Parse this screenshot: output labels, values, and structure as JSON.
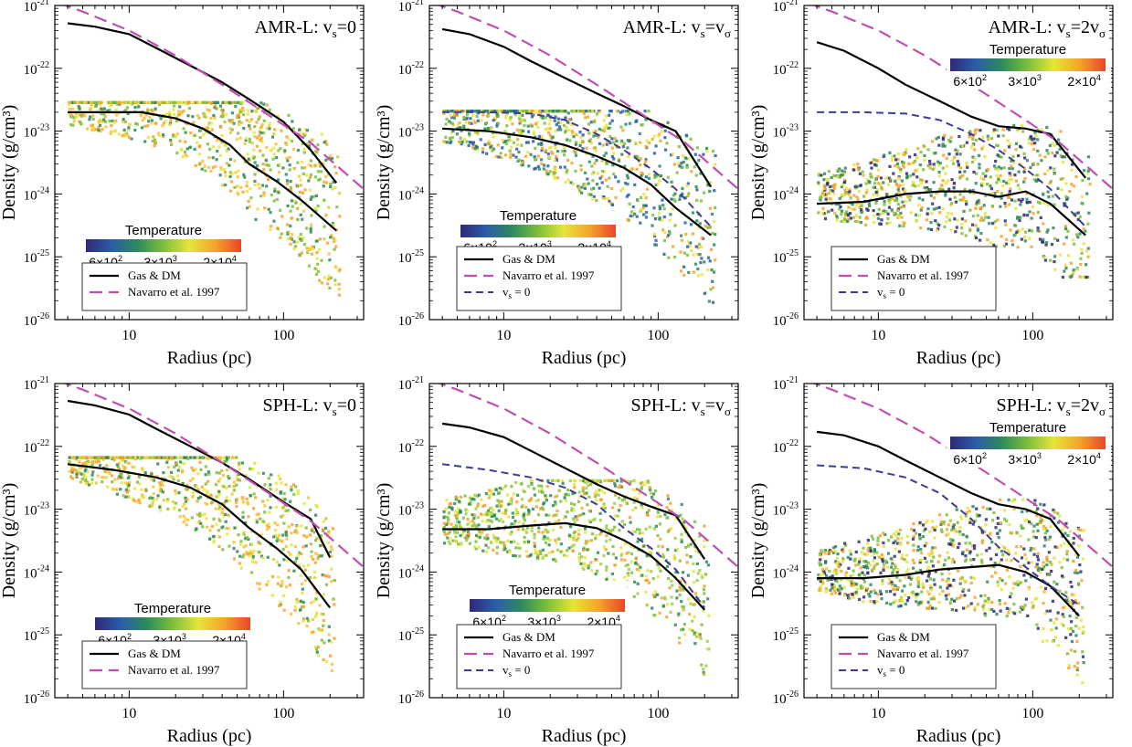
{
  "figure": {
    "colors": {
      "gas_dm": "#000000",
      "navarro": "#c04fb0",
      "vs0": "#3c3c96",
      "temperature_colormap": [
        "#2e2a78",
        "#2b5da8",
        "#2d8a5c",
        "#7cbf3a",
        "#e8e43c",
        "#f4a32a",
        "#e8452a"
      ],
      "axes": "#000000",
      "background": "#ffffff"
    },
    "shared": {
      "xlabel": "Radius (pc)",
      "ylabel": "Density (g/cm³)",
      "xscale": "log",
      "yscale": "log",
      "xlim": [
        3.3,
        330
      ],
      "ylim": [
        1e-26,
        1e-21
      ],
      "x_ticks": [
        10,
        100
      ],
      "x_tick_labels": [
        "10",
        "100"
      ],
      "y_ticks": [
        1e-26,
        1e-25,
        1e-24,
        1e-23,
        1e-22,
        1e-21
      ],
      "y_tick_labels": [
        "10",
        "10",
        "10",
        "10",
        "10",
        "10"
      ],
      "y_tick_exponents": [
        "-26",
        "-25",
        "-24",
        "-23",
        "-22",
        "-21"
      ],
      "colorbar": {
        "label": "Temperature",
        "ticks": [
          "6×10",
          "3×10",
          "2×10"
        ],
        "tick_exponents": [
          "2",
          "3",
          "4"
        ]
      },
      "legend_labels": {
        "gas_dm": "Gas & DM",
        "navarro": "Navarro et al. 1997",
        "vs0": "v  = 0"
      }
    }
  },
  "chart_data": [
    {
      "type": "line",
      "panel": "top-left",
      "title": "AMR-L: v",
      "title_sub": "s",
      "title_rest": "=0",
      "legend_entries": [
        "gas_dm",
        "navarro"
      ],
      "legend_placement": "bottom-left",
      "colorbar_placement": "bottom-left",
      "series": [
        {
          "name": "Gas & DM",
          "style": "gas_dm",
          "x": [
            4,
            6,
            10,
            15,
            25,
            40,
            60,
            100,
            150,
            220
          ],
          "y": [
            5.2e-22,
            4.6e-22,
            3.5e-22,
            2.1e-22,
            1.1e-22,
            6e-23,
            3.2e-23,
            1.4e-23,
            5e-24,
            1.5e-24
          ]
        },
        {
          "name": "Gas & DM (gas)",
          "style": "gas_dm",
          "x": [
            4,
            8,
            12,
            20,
            30,
            45,
            60,
            90,
            130,
            220
          ],
          "y": [
            2e-23,
            2e-23,
            2e-23,
            1.6e-23,
            1.1e-23,
            6e-24,
            3e-24,
            1.6e-24,
            8e-25,
            2.6e-25
          ]
        },
        {
          "name": "Navarro et al. 1997",
          "style": "navarro",
          "x": [
            3.5,
            5,
            10,
            20,
            40,
            80,
            150,
            330
          ],
          "y": [
            1.1e-21,
            8e-22,
            4e-22,
            1.6e-22,
            5.5e-23,
            1.8e-23,
            6.5e-24,
            1.2e-24
          ]
        }
      ],
      "scatter_region": {
        "xmin": 4,
        "xmax": 230,
        "ymin": 2e-26,
        "ymax": 3e-23,
        "palette": [
          "#f4a32a",
          "#e8e43c",
          "#f7c23a",
          "#7cbf3a",
          "#2d8a5c"
        ]
      }
    },
    {
      "type": "line",
      "panel": "top-middle",
      "title": "AMR-L: v",
      "title_sub": "s",
      "title_rest": "=v",
      "title_rest_sub": "σ",
      "legend_entries": [
        "gas_dm",
        "navarro",
        "vs0"
      ],
      "legend_placement": "bottom-left",
      "colorbar_placement": "bottom-left",
      "series": [
        {
          "name": "Gas & DM",
          "style": "gas_dm",
          "x": [
            4,
            6,
            10,
            15,
            25,
            40,
            60,
            90,
            130,
            220
          ],
          "y": [
            4.2e-22,
            3.5e-22,
            2.2e-22,
            1.3e-22,
            7e-23,
            4e-23,
            2.5e-23,
            1.5e-23,
            1e-23,
            1.3e-24
          ]
        },
        {
          "name": "Gas & DM (gas)",
          "style": "gas_dm",
          "x": [
            4,
            8,
            15,
            25,
            40,
            60,
            90,
            130,
            220
          ],
          "y": [
            1.1e-23,
            1e-23,
            8e-24,
            6e-24,
            4e-24,
            2.6e-24,
            1.4e-24,
            6e-25,
            2.2e-25
          ]
        },
        {
          "name": "Navarro et al. 1997",
          "style": "navarro",
          "x": [
            3.5,
            5,
            10,
            20,
            40,
            80,
            150,
            330
          ],
          "y": [
            1.1e-21,
            8e-22,
            4e-22,
            1.6e-22,
            5.5e-23,
            1.8e-23,
            6.5e-24,
            1.2e-24
          ]
        },
        {
          "name": "v  = 0",
          "style": "vs0",
          "x": [
            4,
            8,
            15,
            25,
            40,
            60,
            90,
            130,
            220
          ],
          "y": [
            2e-23,
            2e-23,
            1.9e-23,
            1.5e-23,
            9e-24,
            5e-24,
            2.5e-24,
            1.2e-24,
            3e-25
          ]
        }
      ],
      "scatter_region": {
        "xmin": 4,
        "xmax": 230,
        "ymin": 1e-26,
        "ymax": 2.2e-23,
        "palette": [
          "#f4a32a",
          "#e8e43c",
          "#7cbf3a",
          "#2d8a5c",
          "#2b5da8"
        ]
      }
    },
    {
      "type": "line",
      "panel": "top-right",
      "title": "AMR-L: v",
      "title_sub": "s",
      "title_rest": "=2v",
      "title_rest_sub": "σ",
      "legend_entries": [
        "gas_dm",
        "navarro",
        "vs0"
      ],
      "legend_placement": "bottom-left",
      "colorbar_placement": "top-right",
      "series": [
        {
          "name": "Gas & DM",
          "style": "gas_dm",
          "x": [
            4,
            6,
            10,
            15,
            25,
            40,
            60,
            90,
            130,
            220
          ],
          "y": [
            2.6e-22,
            1.9e-22,
            1e-22,
            5.5e-23,
            3e-23,
            1.7e-23,
            1.2e-23,
            1.1e-23,
            9e-24,
            1.8e-24
          ]
        },
        {
          "name": "Gas & DM (gas)",
          "style": "gas_dm",
          "x": [
            4,
            8,
            15,
            25,
            40,
            60,
            90,
            130,
            220
          ],
          "y": [
            7e-25,
            7.5e-25,
            1e-24,
            1.1e-24,
            1.1e-24,
            9e-25,
            1.1e-24,
            7e-25,
            2.2e-25
          ]
        },
        {
          "name": "Navarro et al. 1997",
          "style": "navarro",
          "x": [
            3.5,
            5,
            10,
            20,
            40,
            80,
            150,
            330
          ],
          "y": [
            1.1e-21,
            8e-22,
            4e-22,
            1.6e-22,
            5.5e-23,
            1.8e-23,
            6.5e-24,
            1.2e-24
          ]
        },
        {
          "name": "v  = 0",
          "style": "vs0",
          "x": [
            4,
            8,
            15,
            25,
            40,
            60,
            90,
            130,
            220
          ],
          "y": [
            2e-23,
            2e-23,
            1.9e-23,
            1.5e-23,
            9e-24,
            5e-24,
            2.5e-24,
            1.2e-24,
            3e-25
          ]
        }
      ],
      "scatter_region": {
        "xmin": 4,
        "xmax": 230,
        "ymin": 5e-26,
        "ymax": 1.3e-23,
        "palette": [
          "#2d8a5c",
          "#7cbf3a",
          "#e8e43c",
          "#f4a32a",
          "#2e2a78"
        ]
      }
    },
    {
      "type": "line",
      "panel": "bottom-left",
      "title": "SPH-L: v",
      "title_sub": "s",
      "title_rest": "=0",
      "legend_entries": [
        "gas_dm",
        "navarro"
      ],
      "legend_placement": "bottom-left",
      "colorbar_placement": "bottom-left",
      "series": [
        {
          "name": "Gas & DM",
          "style": "gas_dm",
          "x": [
            4,
            6,
            10,
            15,
            25,
            40,
            60,
            100,
            150,
            200
          ],
          "y": [
            5.3e-22,
            4.5e-22,
            3.2e-22,
            1.9e-22,
            1e-22,
            5.5e-23,
            3e-23,
            1.3e-23,
            7e-24,
            1.7e-24
          ]
        },
        {
          "name": "Gas & DM (gas)",
          "style": "gas_dm",
          "x": [
            4,
            8,
            15,
            25,
            40,
            60,
            90,
            130,
            200
          ],
          "y": [
            5.2e-23,
            4.2e-23,
            3.2e-23,
            2.2e-23,
            1.2e-23,
            5e-24,
            2.4e-24,
            1.1e-24,
            2.7e-25
          ]
        },
        {
          "name": "Navarro et al. 1997",
          "style": "navarro",
          "x": [
            3.5,
            5,
            10,
            20,
            40,
            80,
            150,
            330
          ],
          "y": [
            1.1e-21,
            8e-22,
            4e-22,
            1.6e-22,
            5.5e-23,
            1.8e-23,
            6.5e-24,
            1.2e-24
          ]
        }
      ],
      "scatter_region": {
        "xmin": 4,
        "xmax": 210,
        "ymin": 2e-26,
        "ymax": 7e-23,
        "palette": [
          "#f4a32a",
          "#e8e43c",
          "#7cbf3a",
          "#2d8a5c",
          "#f7c23a"
        ]
      }
    },
    {
      "type": "line",
      "panel": "bottom-middle",
      "title": "SPH-L: v",
      "title_sub": "s",
      "title_rest": "=v",
      "title_rest_sub": "σ",
      "legend_entries": [
        "gas_dm",
        "navarro",
        "vs0"
      ],
      "legend_placement": "bottom-left",
      "colorbar_placement": "bottom-left",
      "series": [
        {
          "name": "Gas & DM",
          "style": "gas_dm",
          "x": [
            4,
            6,
            10,
            15,
            25,
            40,
            60,
            90,
            130,
            200
          ],
          "y": [
            2.3e-22,
            2e-22,
            1.4e-22,
            8.5e-23,
            4.5e-23,
            2.5e-23,
            1.6e-23,
            1.1e-23,
            8e-24,
            1.6e-24
          ]
        },
        {
          "name": "Gas & DM (gas)",
          "style": "gas_dm",
          "x": [
            4,
            8,
            15,
            25,
            40,
            60,
            90,
            130,
            200
          ],
          "y": [
            4.8e-24,
            4.8e-24,
            5.5e-24,
            6e-24,
            5e-24,
            3.2e-24,
            1.8e-24,
            8e-25,
            2.5e-25
          ]
        },
        {
          "name": "Navarro et al. 1997",
          "style": "navarro",
          "x": [
            3.5,
            5,
            10,
            20,
            40,
            80,
            150,
            330
          ],
          "y": [
            1.1e-21,
            8e-22,
            4e-22,
            1.6e-22,
            5.5e-23,
            1.8e-23,
            6.5e-24,
            1.2e-24
          ]
        },
        {
          "name": "v  = 0",
          "style": "vs0",
          "x": [
            4,
            8,
            15,
            25,
            40,
            60,
            90,
            130,
            200
          ],
          "y": [
            5.2e-23,
            4.2e-23,
            3.2e-23,
            2.2e-23,
            1.2e-23,
            5e-24,
            2.4e-24,
            1.1e-24,
            2.7e-25
          ]
        }
      ],
      "scatter_region": {
        "xmin": 4,
        "xmax": 210,
        "ymin": 2e-26,
        "ymax": 3e-23,
        "palette": [
          "#e8e43c",
          "#7cbf3a",
          "#2d8a5c",
          "#f4a32a",
          "#9fd04a"
        ]
      }
    },
    {
      "type": "line",
      "panel": "bottom-right",
      "title": "SPH-L: v",
      "title_sub": "s",
      "title_rest": "=2v",
      "title_rest_sub": "σ",
      "legend_entries": [
        "gas_dm",
        "navarro",
        "vs0"
      ],
      "legend_placement": "bottom-left",
      "colorbar_placement": "top-right",
      "series": [
        {
          "name": "Gas & DM",
          "style": "gas_dm",
          "x": [
            4,
            6,
            10,
            15,
            25,
            40,
            60,
            90,
            130,
            200
          ],
          "y": [
            1.7e-22,
            1.5e-22,
            1e-22,
            6e-23,
            3.2e-23,
            1.8e-23,
            1.2e-23,
            1e-23,
            7e-24,
            1.8e-24
          ]
        },
        {
          "name": "Gas & DM (gas)",
          "style": "gas_dm",
          "x": [
            4,
            8,
            15,
            25,
            40,
            60,
            90,
            130,
            200
          ],
          "y": [
            8e-25,
            8e-25,
            9e-25,
            1.1e-24,
            1.2e-24,
            1.3e-24,
            1e-24,
            6e-25,
            2e-25
          ]
        },
        {
          "name": "Navarro et al. 1997",
          "style": "navarro",
          "x": [
            3.5,
            5,
            10,
            20,
            40,
            80,
            150,
            330
          ],
          "y": [
            1.1e-21,
            8e-22,
            4e-22,
            1.6e-22,
            5.5e-23,
            1.8e-23,
            6.5e-24,
            1.2e-24
          ]
        },
        {
          "name": "v  = 0",
          "style": "vs0",
          "x": [
            4,
            8,
            15,
            25,
            40,
            60,
            90,
            130,
            200
          ],
          "y": [
            5e-23,
            4.5e-23,
            3.2e-23,
            1.8e-23,
            7e-24,
            2.5e-24,
            1.2e-24,
            6e-25,
            3e-25
          ]
        }
      ],
      "scatter_region": {
        "xmin": 4,
        "xmax": 210,
        "ymin": 1e-26,
        "ymax": 1.5e-23,
        "palette": [
          "#2d8a5c",
          "#7cbf3a",
          "#e8e43c",
          "#2e2a78",
          "#f4a32a"
        ]
      }
    }
  ]
}
